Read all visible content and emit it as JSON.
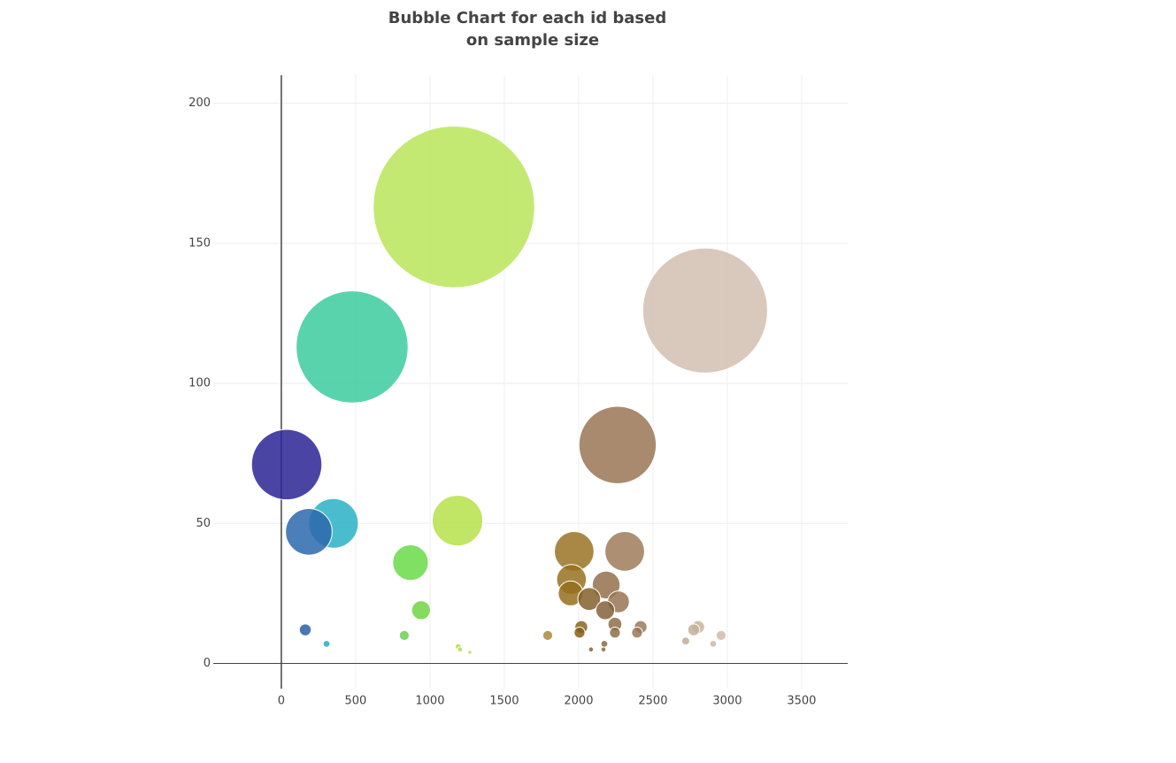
{
  "chart_data": {
    "type": "bubble",
    "title": [
      "Bubble Chart for each id based",
      "on sample size"
    ],
    "xlim": [
      -458,
      3810
    ],
    "ylim": [
      -9,
      210
    ],
    "xticks": [
      0,
      500,
      1000,
      1500,
      2000,
      2500,
      3000,
      3500
    ],
    "yticks": [
      0,
      50,
      100,
      150,
      200
    ],
    "grid": true,
    "x": [
      1161,
      2851,
      476,
      2262,
      36,
      1185,
      351,
      185,
      1970,
      2310,
      869,
      1952,
      2185,
      1946,
      2071,
      2268,
      2179,
      940,
      2244,
      2417,
      2804,
      161,
      2018,
      2774,
      2006,
      2244,
      2393,
      2958,
      827,
      1792,
      2720,
      304,
      2905,
      2173,
      1190,
      1202,
      2083,
      2167,
      1268
    ],
    "y": [
      163,
      126,
      113,
      78,
      71,
      51,
      50,
      47,
      40,
      40,
      36,
      30,
      28,
      25,
      23,
      22,
      19,
      19,
      14,
      13,
      13,
      12,
      13,
      12,
      11,
      11,
      11,
      10,
      10,
      10,
      8,
      7,
      7,
      7,
      6,
      5,
      5,
      5,
      4
    ],
    "sizes": [
      163,
      126,
      113,
      78,
      71,
      51,
      50,
      47,
      40,
      40,
      36,
      30,
      28,
      25,
      23,
      22,
      19,
      19,
      14,
      13,
      13,
      12,
      13,
      12,
      11,
      11,
      11,
      10,
      10,
      10,
      8,
      7,
      7,
      7,
      6,
      5,
      5,
      5,
      4
    ],
    "colors": [
      "#b8e55a",
      "#d2c0b0",
      "#3ccb9d",
      "#9a7656",
      "#2a2595",
      "#b6e04a",
      "#29b2c4",
      "#2c68ad",
      "#9a7326",
      "#9f7d5c",
      "#68da48",
      "#96711e",
      "#93704e",
      "#946f1c",
      "#85602a",
      "#997454",
      "#83623c",
      "#6ed541",
      "#8e6e48",
      "#9c7a5a",
      "#c8b49e",
      "#2c5ea6",
      "#8a6520",
      "#c4b09a",
      "#846018",
      "#8e6e48",
      "#9a7858",
      "#d0bca8",
      "#6bd04c",
      "#a88a3a",
      "#c2ac96",
      "#2ea7c4",
      "#ccb8a4",
      "#8c6a44",
      "#b0dd50",
      "#b2de52",
      "#86622c",
      "#8a6842",
      "#b4df54"
    ]
  }
}
